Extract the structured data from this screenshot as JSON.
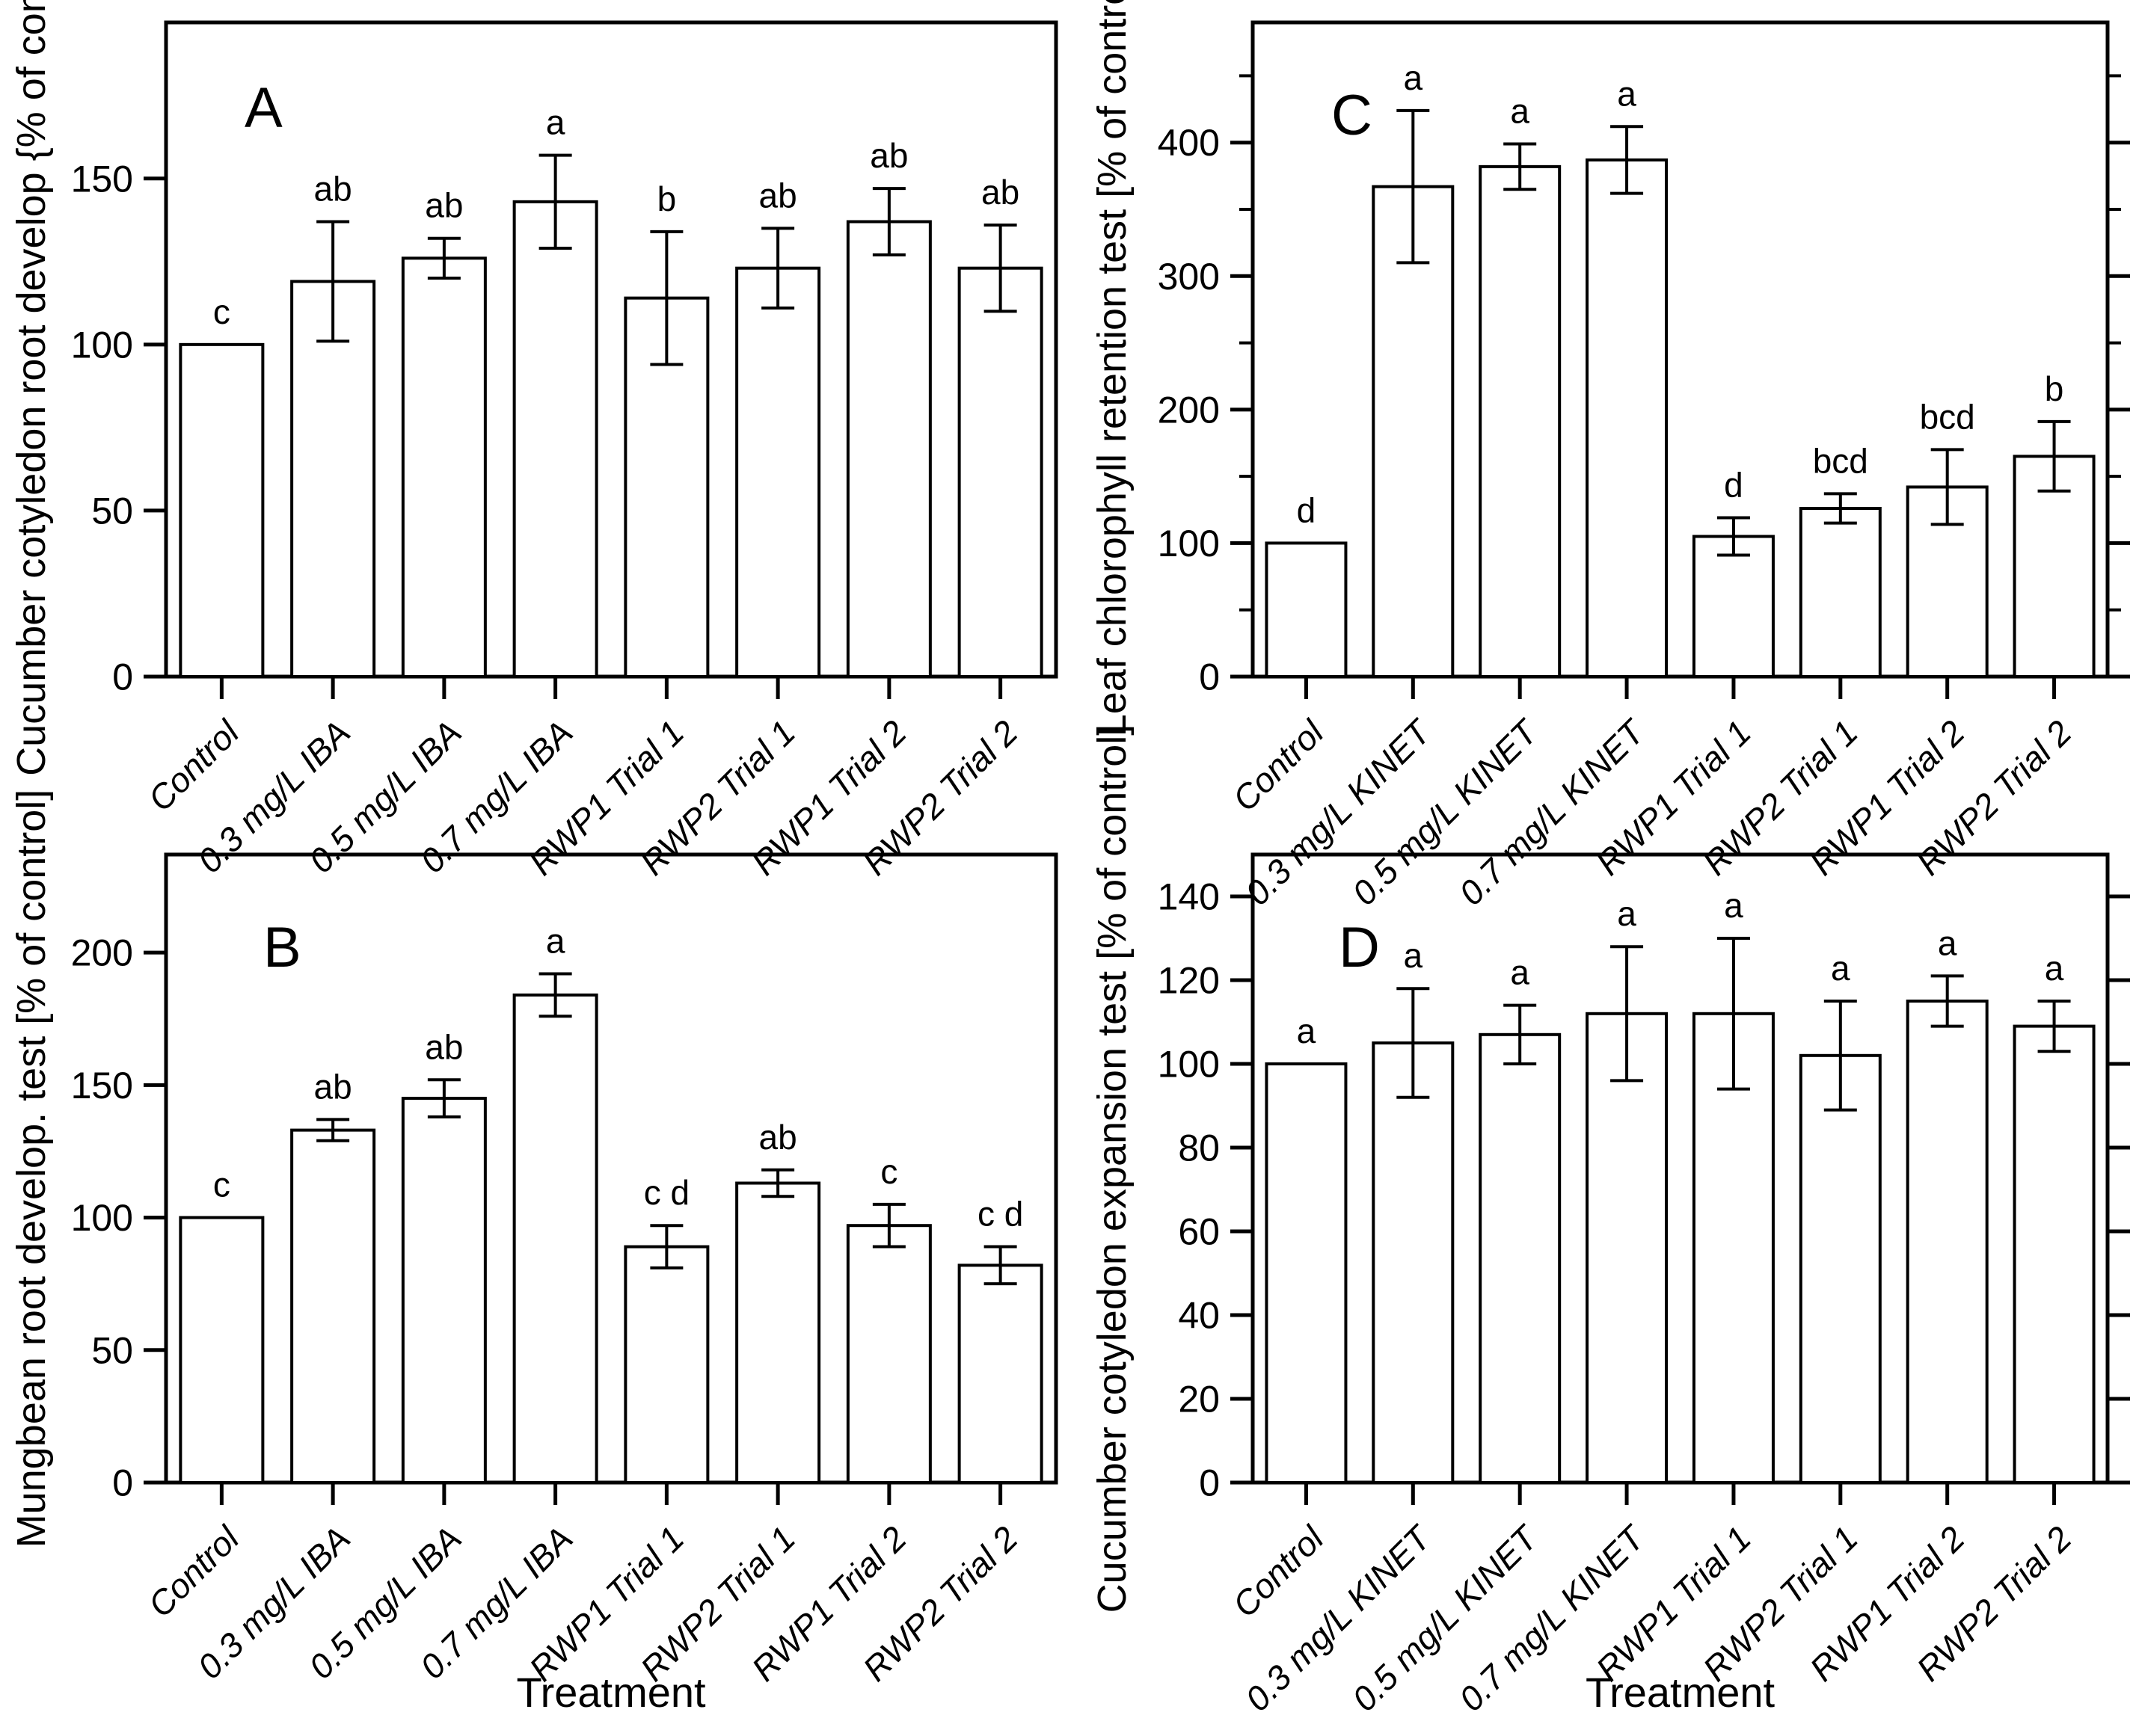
{
  "figure": {
    "background_color": "#ffffff",
    "ink_color": "#000000",
    "x_axis_title": "Treatment"
  },
  "chart_data": [
    {
      "type": "bar",
      "panel_letter": "A",
      "ylabel": "Cucumber cotyledon root develop {% of control]",
      "xlabel": "",
      "categories": [
        "Control",
        "0.3 mg/L IBA",
        "0.5 mg/L IBA",
        "0.7 mg/L IBA",
        "RWP1 Trial 1",
        "RWP2 Trial 1",
        "RWP1 Trial 2",
        "RWP2 Trial 2"
      ],
      "values": [
        100,
        119,
        126,
        143,
        114,
        123,
        137,
        123
      ],
      "errors": [
        0,
        18,
        6,
        14,
        20,
        12,
        10,
        13
      ],
      "sig_letters": [
        "c",
        "ab",
        "ab",
        "a",
        "b",
        "ab",
        "ab",
        "ab"
      ],
      "ylim": [
        0,
        197
      ],
      "yticks": [
        0,
        50,
        100,
        150
      ],
      "ytick_minor_step": null,
      "right_edge_ticks": false,
      "grid": false,
      "bar_fill": "#ffffff",
      "bar_stroke": "#000000",
      "show_treatment_label": false
    },
    {
      "type": "bar",
      "panel_letter": "B",
      "ylabel": "Mungbean root develop. test [% of control]",
      "xlabel": "Treatment",
      "categories": [
        "Control",
        "0.3 mg/L IBA",
        "0.5 mg/L IBA",
        "0.7 mg/L IBA",
        "RWP1 Trial 1",
        "RWP2 Trial 1",
        "RWP1 Trial 2",
        "RWP2 Trial 2"
      ],
      "values": [
        100,
        133,
        145,
        184,
        89,
        113,
        97,
        82
      ],
      "errors": [
        0,
        4,
        7,
        8,
        8,
        5,
        8,
        7
      ],
      "sig_letters": [
        "c",
        "ab",
        "ab",
        "a",
        "c d",
        "ab",
        "c",
        "c d"
      ],
      "ylim": [
        0,
        237
      ],
      "yticks": [
        0,
        50,
        100,
        150,
        200
      ],
      "ytick_minor_step": null,
      "right_edge_ticks": false,
      "grid": false,
      "bar_fill": "#ffffff",
      "bar_stroke": "#000000",
      "show_treatment_label": true
    },
    {
      "type": "bar",
      "panel_letter": "C",
      "ylabel": "Leaf chlorophyll retention test  [% of control]",
      "xlabel": "",
      "categories": [
        "Control",
        "0.3 mg/L KINET",
        "0.5 mg/L KINET",
        "0.7 mg/L KINET",
        "RWP1 Trial 1",
        "RWP2 Trial 1",
        "RWP1 Trial 2",
        "RWP2 Trial 2"
      ],
      "values": [
        100,
        367,
        382,
        387,
        105,
        126,
        142,
        165
      ],
      "errors": [
        0,
        57,
        17,
        25,
        14,
        11,
        28,
        26
      ],
      "sig_letters": [
        "d",
        "a",
        "a",
        "a",
        "d",
        "bcd",
        "bcd",
        "b"
      ],
      "ylim": [
        0,
        490
      ],
      "yticks": [
        0,
        100,
        200,
        300,
        400
      ],
      "ytick_minor_step": 50,
      "right_edge_ticks": true,
      "grid": false,
      "bar_fill": "#ffffff",
      "bar_stroke": "#000000",
      "show_treatment_label": false
    },
    {
      "type": "bar",
      "panel_letter": "D",
      "ylabel": "Cucumber cotyledon expansion test [% of control]",
      "xlabel": "Treatment",
      "categories": [
        "Control",
        "0.3 mg/L KINET",
        "0.5 mg/L KINET",
        "0.7 mg/L KINET",
        "RWP1 Trial 1",
        "RWP2 Trial 1",
        "RWP1 Trial 2",
        "RWP2 Trial 2"
      ],
      "values": [
        100,
        105,
        107,
        112,
        112,
        102,
        115,
        109
      ],
      "errors": [
        0,
        13,
        7,
        16,
        18,
        13,
        6,
        6
      ],
      "sig_letters": [
        "a",
        "a",
        "a",
        "a",
        "a",
        "a",
        "a",
        "a"
      ],
      "ylim": [
        0,
        150
      ],
      "yticks": [
        0,
        20,
        40,
        60,
        80,
        100,
        120,
        140
      ],
      "ytick_minor_step": null,
      "right_edge_ticks": true,
      "grid": false,
      "bar_fill": "#ffffff",
      "bar_stroke": "#000000",
      "show_treatment_label": true
    }
  ]
}
